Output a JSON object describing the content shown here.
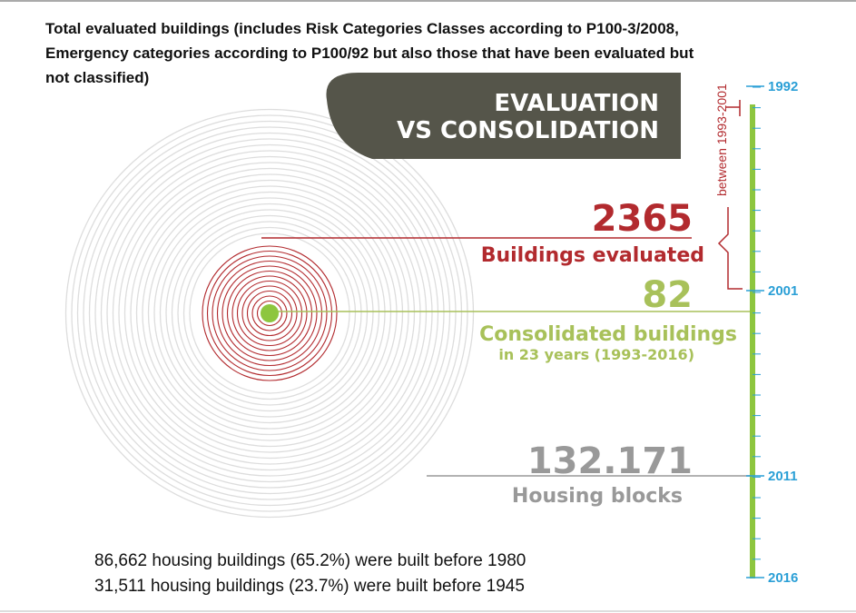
{
  "title_lines": [
    "Total evaluated buildings (includes Risk Categories Classes according to P100-3/2008,",
    "Emergency categories according to P100/92 but also those that have been evaluated but",
    "not classified)"
  ],
  "panel": {
    "line1": "EVALUATION",
    "line2": "VS CONSOLIDATION"
  },
  "stats": [
    {
      "value": "2365",
      "label": "Buildings evaluated"
    },
    {
      "value": "82",
      "label": "Consolidated buildings",
      "sublabel": "in 23 years (1993-2016)"
    },
    {
      "value": "132.171",
      "label": "Housing blocks"
    }
  ],
  "timeline": {
    "years": [
      "1992",
      "2001",
      "2011",
      "2016"
    ],
    "bracket_label": "between 1993-2001"
  },
  "notes": [
    "86,662 housing buildings (65.2%) were built before 1980",
    "31,511 housing buildings (23.7%) were built before 1945"
  ]
}
